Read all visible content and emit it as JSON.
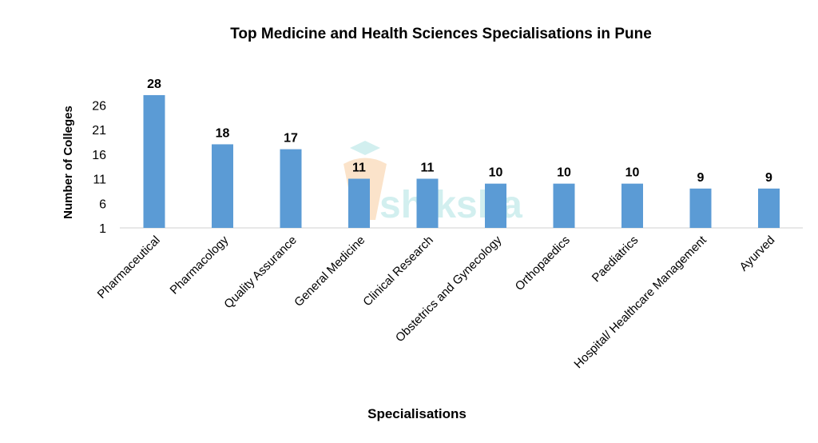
{
  "chart_data": {
    "type": "bar",
    "title": "Top Medicine and Health Sciences Specialisations in Pune",
    "xlabel": "Specialisations",
    "ylabel": "Number of Colleges",
    "categories": [
      "Pharmaceutical",
      "Pharmacology",
      "Quality Assurance",
      "General Medicine",
      "Clinical Research",
      "Obstetrics and Gynecology",
      "Orthopaedics",
      "Paediatrics",
      "Hospital/ Healthcare Management",
      "Ayurved"
    ],
    "values": [
      28,
      18,
      17,
      11,
      11,
      10,
      10,
      10,
      9,
      9
    ],
    "yticks": [
      1,
      6,
      11,
      16,
      21,
      26
    ],
    "ylim": [
      1,
      28
    ],
    "grid": false,
    "legend": "none",
    "bar_color": "#5B9BD5"
  },
  "watermark": {
    "text": "shiksha",
    "color": "#7fd3d3"
  }
}
